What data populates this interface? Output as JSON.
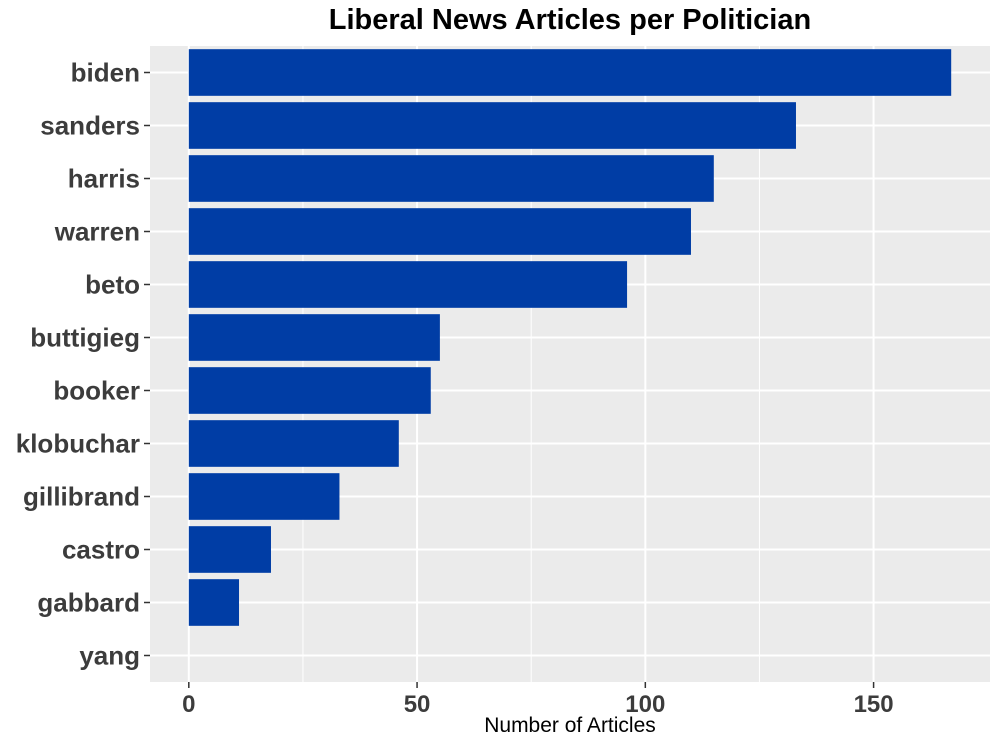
{
  "chart_data": {
    "type": "bar",
    "orientation": "horizontal",
    "title": "Liberal News Articles per Politician",
    "xlabel": "Number of Articles",
    "ylabel": "",
    "categories": [
      "biden",
      "sanders",
      "harris",
      "warren",
      "beto",
      "buttigieg",
      "booker",
      "klobuchar",
      "gillibrand",
      "castro",
      "gabbard",
      "yang"
    ],
    "values": [
      167,
      133,
      115,
      110,
      96,
      55,
      53,
      46,
      33,
      18,
      11,
      0
    ],
    "xlim": [
      -8.5,
      175.5
    ],
    "xticks": [
      0,
      50,
      100,
      150
    ],
    "grid": true,
    "legend": "none",
    "bar_color": "#003da5",
    "panel_color": "#ebebeb",
    "grid_color": "#ffffff"
  }
}
